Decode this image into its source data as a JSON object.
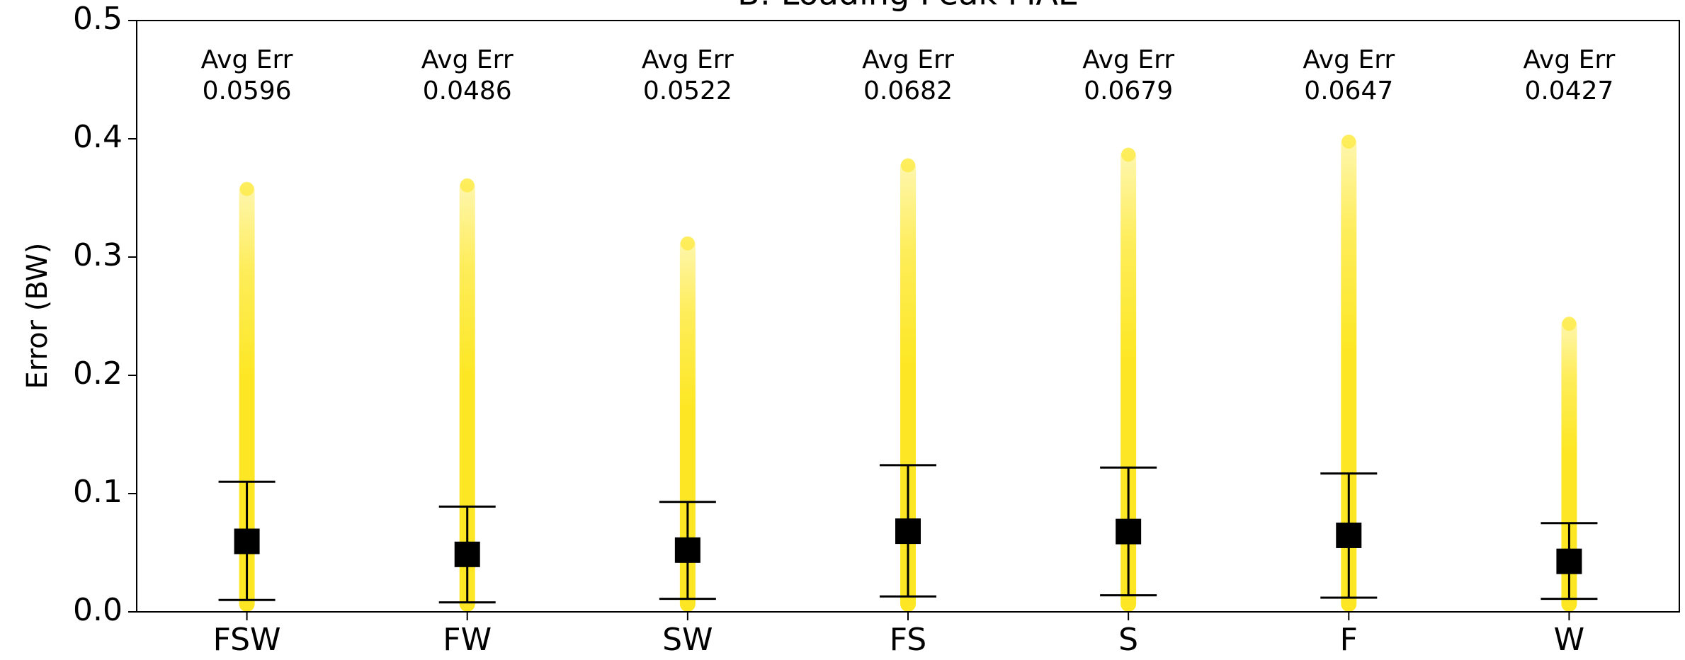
{
  "chart_data": {
    "type": "strip",
    "title": "B: Loading Peak MAE",
    "y_label": "Error (BW)",
    "categories": [
      "FSW",
      "FW",
      "SW",
      "FS",
      "S",
      "F",
      "W"
    ],
    "annotation_label": "Avg Err",
    "mean_values": [
      0.0596,
      0.0486,
      0.0522,
      0.0682,
      0.0679,
      0.0647,
      0.0427
    ],
    "lower_values": [
      0.01,
      0.008,
      0.011,
      0.013,
      0.014,
      0.012,
      0.011
    ],
    "upper_values": [
      0.11,
      0.089,
      0.093,
      0.124,
      0.122,
      0.117,
      0.075
    ],
    "max_values": [
      0.363,
      0.366,
      0.317,
      0.383,
      0.392,
      0.403,
      0.249
    ],
    "point_color": "#fde725",
    "mean_color": "#000000",
    "ylim": [
      0,
      0.5
    ],
    "yticks": [
      {
        "value": 0,
        "label": "0.0"
      },
      0.1,
      0.2,
      0.3,
      0.4,
      0.5
    ]
  }
}
